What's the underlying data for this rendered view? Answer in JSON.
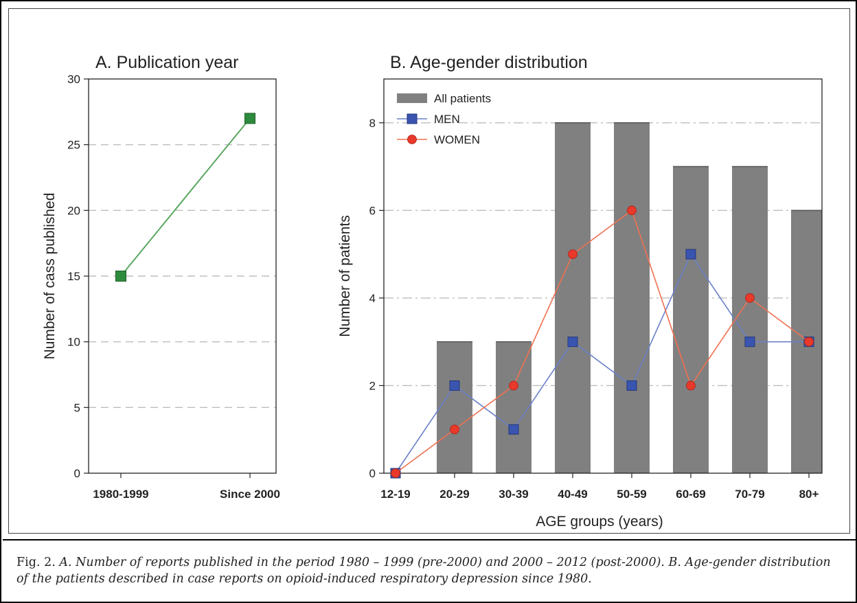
{
  "chart_data": [
    {
      "type": "line",
      "title": "A. Publication year",
      "xlabel": "",
      "ylabel": "Number of cass published",
      "categories": [
        "1980-1999",
        "Since 2000"
      ],
      "series": [
        {
          "values": [
            15,
            27
          ],
          "color": "#2e8b3e"
        }
      ],
      "ylim": [
        0,
        30
      ],
      "yticks": [
        0,
        5,
        10,
        15,
        20,
        25,
        30
      ],
      "grid": "horizontal dashed"
    },
    {
      "type": "bar",
      "title": "B. Age-gender distribution",
      "xlabel": "AGE groups (years)",
      "ylabel": "Number of patients",
      "categories": [
        "12-19",
        "20-29",
        "30-39",
        "40-49",
        "50-59",
        "60-69",
        "70-79",
        "80+"
      ],
      "series": [
        {
          "name": "All patients",
          "type": "bar",
          "values": [
            0,
            3,
            3,
            8,
            8,
            7,
            7,
            6
          ],
          "color": "#808080"
        },
        {
          "name": "MEN",
          "type": "line",
          "marker": "square",
          "values": [
            0,
            2,
            1,
            3,
            2,
            5,
            3,
            3
          ],
          "color": "#3a55b0"
        },
        {
          "name": "WOMEN",
          "type": "line",
          "marker": "circle",
          "values": [
            0,
            1,
            2,
            5,
            6,
            2,
            4,
            3
          ],
          "color": "#e8392a"
        }
      ],
      "ylim": [
        0,
        9
      ],
      "yticks": [
        0,
        2,
        4,
        6,
        8
      ],
      "legend": "top-left",
      "grid": "horizontal dash-dot"
    }
  ],
  "caption": {
    "label": "Fig. 2.",
    "text": "A. Number of reports published in the period 1980 – 1999 (pre-2000) and 2000 – 2012 (post-2000). B. Age-gender distribution of the patients described in case reports on opioid-induced respiratory depression since 1980."
  }
}
